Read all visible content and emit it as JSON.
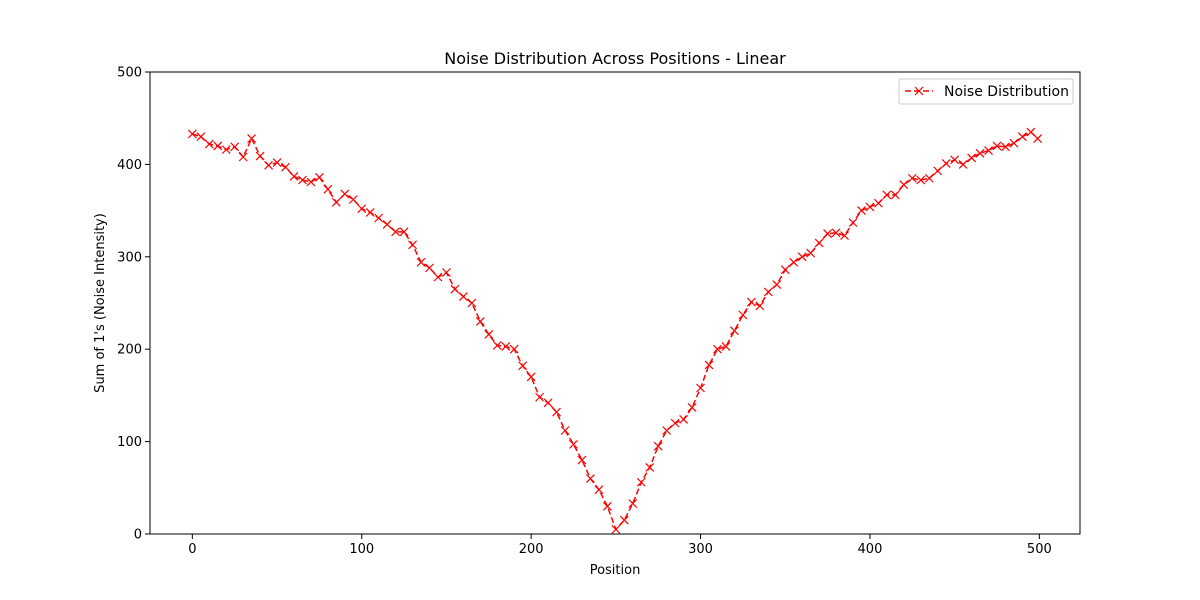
{
  "chart_data": {
    "type": "line",
    "title": "Noise Distribution Across Positions - Linear",
    "xlabel": "Position",
    "ylabel": "Sum of 1's (Noise Intensity)",
    "xlim": [
      -25,
      524
    ],
    "ylim": [
      0,
      500
    ],
    "xticks": [
      0,
      100,
      200,
      300,
      400,
      500
    ],
    "yticks": [
      0,
      100,
      200,
      300,
      400,
      500
    ],
    "grid": false,
    "legend_position": "top-right",
    "color": "#ff0000",
    "line_style": "dashed",
    "marker": "x",
    "series": [
      {
        "name": "Noise Distribution",
        "x": [
          0,
          5,
          10,
          15,
          20,
          25,
          30,
          35,
          40,
          45,
          50,
          55,
          60,
          65,
          70,
          75,
          80,
          85,
          90,
          95,
          100,
          105,
          110,
          115,
          120,
          125,
          130,
          135,
          140,
          145,
          150,
          155,
          160,
          165,
          170,
          175,
          180,
          185,
          190,
          195,
          200,
          205,
          210,
          215,
          220,
          225,
          230,
          235,
          240,
          245,
          250,
          255,
          260,
          265,
          270,
          275,
          280,
          285,
          290,
          295,
          300,
          305,
          310,
          315,
          320,
          325,
          330,
          335,
          340,
          345,
          350,
          355,
          360,
          365,
          370,
          375,
          380,
          385,
          390,
          395,
          400,
          405,
          410,
          415,
          420,
          425,
          430,
          435,
          440,
          445,
          450,
          455,
          460,
          465,
          470,
          475,
          480,
          485,
          490,
          495,
          499
        ],
        "y": [
          433,
          430,
          422,
          420,
          416,
          419,
          408,
          428,
          409,
          399,
          402,
          397,
          387,
          383,
          381,
          386,
          373,
          359,
          368,
          362,
          352,
          348,
          342,
          335,
          327,
          327,
          313,
          294,
          288,
          278,
          283,
          265,
          257,
          250,
          230,
          216,
          204,
          203,
          200,
          182,
          170,
          148,
          142,
          132,
          112,
          97,
          80,
          60,
          48,
          30,
          5,
          15,
          33,
          56,
          72,
          95,
          112,
          120,
          124,
          137,
          158,
          183,
          200,
          203,
          220,
          237,
          251,
          247,
          262,
          270,
          286,
          294,
          300,
          304,
          315,
          325,
          326,
          323,
          337,
          350,
          354,
          358,
          367,
          367,
          378,
          385,
          383,
          385,
          393,
          401,
          405,
          400,
          407,
          412,
          415,
          420,
          419,
          423,
          430,
          435,
          428
        ]
      }
    ]
  }
}
